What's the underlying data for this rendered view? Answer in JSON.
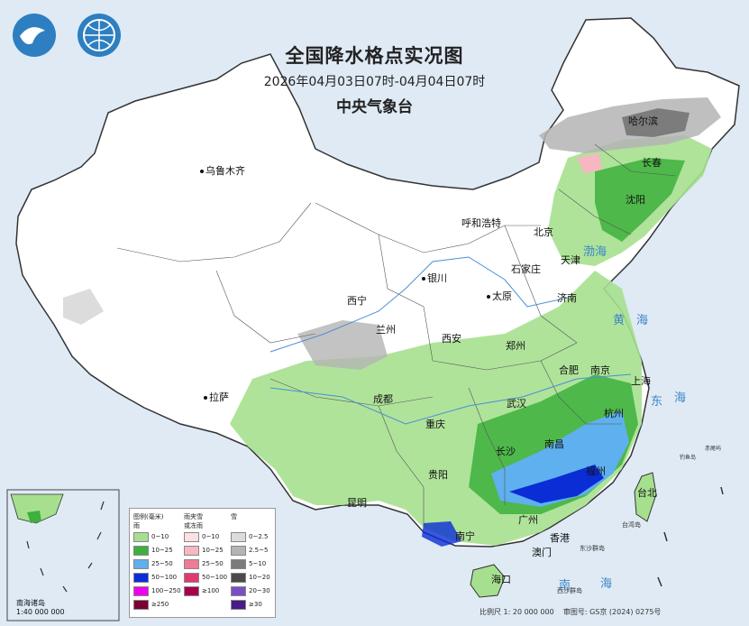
{
  "title": {
    "main": "全国降水格点实况图",
    "period": "2026年04月03日07时-04月04日07时",
    "agency": "中央气象台"
  },
  "cities": [
    {
      "name": "乌鲁木齐"
    },
    {
      "name": "哈尔滨"
    },
    {
      "name": "长春"
    },
    {
      "name": "沈阳"
    },
    {
      "name": "呼和浩特"
    },
    {
      "name": "北京"
    },
    {
      "name": "天津"
    },
    {
      "name": "银川"
    },
    {
      "name": "石家庄"
    },
    {
      "name": "太原"
    },
    {
      "name": "济南"
    },
    {
      "name": "西宁"
    },
    {
      "name": "兰州"
    },
    {
      "name": "西安"
    },
    {
      "name": "郑州"
    },
    {
      "name": "合肥"
    },
    {
      "name": "南京"
    },
    {
      "name": "上海"
    },
    {
      "name": "拉萨"
    },
    {
      "name": "成都"
    },
    {
      "name": "武汉"
    },
    {
      "name": "杭州"
    },
    {
      "name": "重庆"
    },
    {
      "name": "长沙"
    },
    {
      "name": "南昌"
    },
    {
      "name": "福州"
    },
    {
      "name": "贵阳"
    },
    {
      "name": "台北"
    },
    {
      "name": "昆明"
    },
    {
      "name": "广州"
    },
    {
      "name": "南宁"
    },
    {
      "name": "香港"
    },
    {
      "name": "澳门"
    },
    {
      "name": "海口"
    }
  ],
  "seas": {
    "bohai": "渤海",
    "yellow1": "黄",
    "yellow2": "海",
    "east1": "东",
    "east2": "海",
    "south1": "南",
    "south2": "海"
  },
  "islands": {
    "taiwan_island": "台湾岛",
    "dongsha": "东沙群岛",
    "xisha": "西沙群岛",
    "diaoyu": "钓鱼岛",
    "chiwei": "赤尾屿"
  },
  "inset": {
    "caption1": "南海诸岛",
    "caption2": "1:40 000 000"
  },
  "legend": {
    "rain_title": "图例(毫米)",
    "rain_sub": "雨",
    "mix_title": "雨夹雪",
    "mix_sub": "或冻雨",
    "snow_title": "雪",
    "rain": [
      {
        "label": "0~10",
        "color": "#a6e08f"
      },
      {
        "label": "10~25",
        "color": "#3db03d"
      },
      {
        "label": "25~50",
        "color": "#5fb0ee"
      },
      {
        "label": "50~100",
        "color": "#0a2dd6"
      },
      {
        "label": "100~250",
        "color": "#ee00ee"
      },
      {
        "label": "≥250",
        "color": "#7a0033"
      }
    ],
    "mix": [
      {
        "label": "0~10",
        "color": "#fbe0e4"
      },
      {
        "label": "10~25",
        "color": "#f7b7c2"
      },
      {
        "label": "25~50",
        "color": "#f17a96"
      },
      {
        "label": "50~100",
        "color": "#e03a6e"
      },
      {
        "label": "≥100",
        "color": "#a8004a"
      }
    ],
    "snow": [
      {
        "label": "0~2.5",
        "color": "#dcdcdc"
      },
      {
        "label": "2.5~5",
        "color": "#b4b4b4"
      },
      {
        "label": "5~10",
        "color": "#7c7c7c"
      },
      {
        "label": "10~20",
        "color": "#4a4a4a"
      },
      {
        "label": "20~30",
        "color": "#7a4fc4"
      },
      {
        "label": "≥30",
        "color": "#4a1a8a"
      }
    ]
  },
  "footer": {
    "scale": "比例尺 1: 20 000 000",
    "review": "审图号: GS京 (2024) 0275号"
  }
}
